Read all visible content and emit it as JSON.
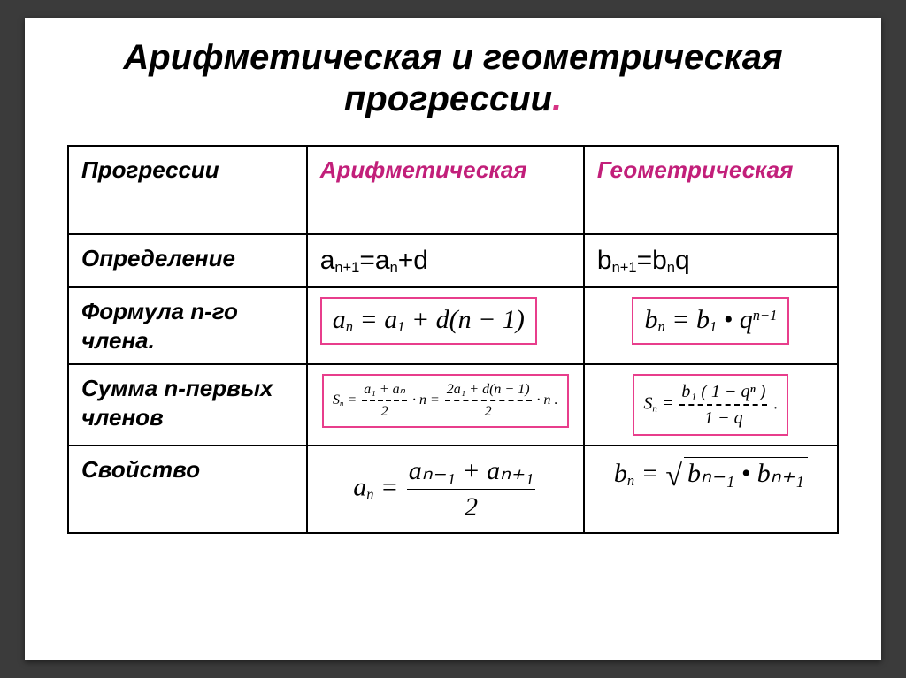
{
  "colors": {
    "accent": "#c21f7a",
    "box": "#e83e8c",
    "text": "#000",
    "bg": "#ffffff",
    "frame": "#3b3b3b"
  },
  "title": {
    "part1": "Арифметическая и геометрическая",
    "part2": "прогрессии",
    "dot": "."
  },
  "headers": {
    "c0": "Прогрессии",
    "c1": "Арифметическая",
    "c2": "Геометрическая"
  },
  "rows": {
    "def": {
      "label": "Определение",
      "arith": {
        "lhs": "a",
        "ls": "n+1",
        "eq": "=",
        "r1": "a",
        "r1s": "n",
        "plus": "+d"
      },
      "geom": {
        "lhs": "b",
        "ls": "n+1",
        "eq": "=",
        "r1": "b",
        "r1s": "n",
        "tail": "q"
      }
    },
    "nth": {
      "label": "Формула n-го члена.",
      "arith": {
        "lhs": "a",
        "ls": "n",
        "eq": " = ",
        "r1": "a",
        "r1s": "1",
        "tail": " + d(n − 1)"
      },
      "geom": {
        "lhs": "b",
        "ls": "n",
        "eq": " = ",
        "r1": "b",
        "r1s": "1",
        "dot": " • ",
        "q": "q",
        "qs": "n−1"
      }
    },
    "sum": {
      "label": "Сумма n-первых членов",
      "arith": {
        "S": "S",
        "Ss": "n",
        "eq": " = ",
        "n1": "a₁ + aₙ",
        "d1": "2",
        "mid": " · n = ",
        "n2": "2a₁ + d(n − 1)",
        "d2": "2",
        "end": " · n ."
      },
      "geom": {
        "S": "S",
        "Ss": "n",
        "eq": " = ",
        "num": "b₁ ( 1 − qⁿ )",
        "den": "1 − q",
        "end": " ."
      }
    },
    "prop": {
      "label": "Свойство",
      "arith": {
        "lhs": "a",
        "ls": "n",
        "eq": " = ",
        "num": "aₙ₋₁ + aₙ₊₁",
        "den": "2"
      },
      "geom": {
        "lhs": "b",
        "ls": "n",
        "eq": " = ",
        "rad": "bₙ₋₁ • bₙ₊₁"
      }
    }
  }
}
